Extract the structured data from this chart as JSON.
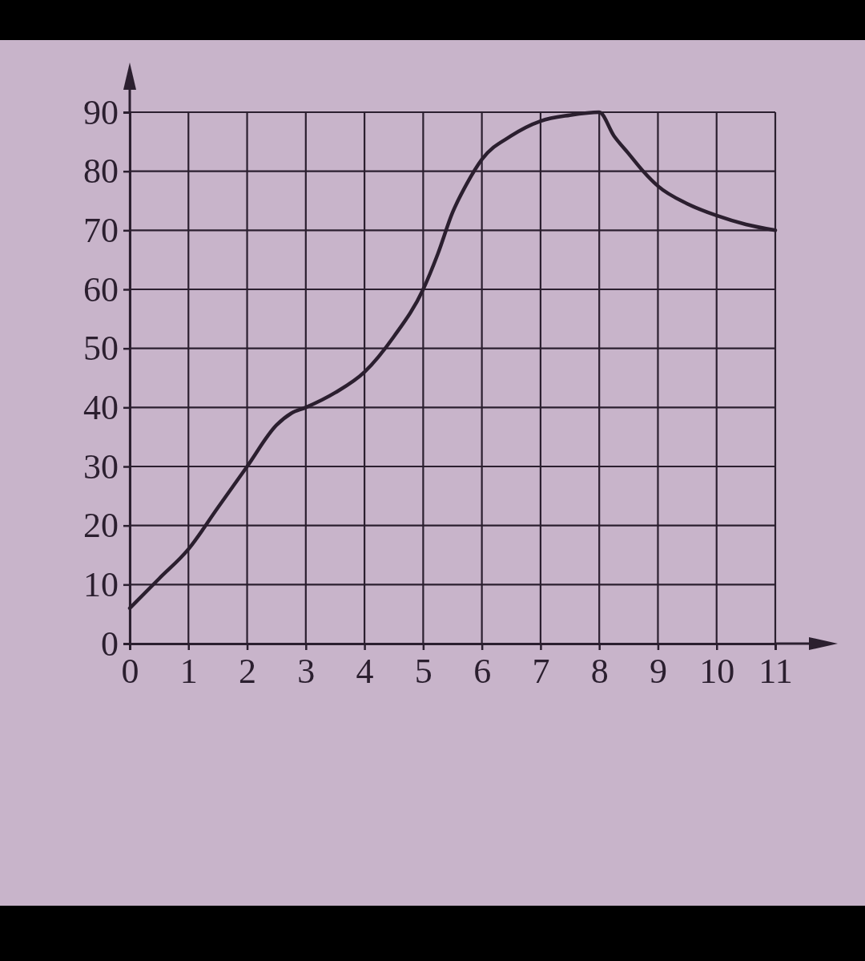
{
  "chart_data": {
    "type": "line",
    "x": [
      0,
      0.5,
      1,
      1.5,
      2,
      2.5,
      2.75,
      3,
      3.5,
      4,
      4.5,
      5,
      5.25,
      5.5,
      5.75,
      6,
      6.5,
      7,
      7.5,
      8,
      8.25,
      8.5,
      8.75,
      9,
      9.5,
      10,
      10.5,
      11
    ],
    "values": [
      6,
      11,
      16,
      23,
      30,
      37,
      39,
      40,
      42.5,
      46,
      52,
      60,
      66,
      73,
      78,
      82,
      86,
      88.5,
      89.5,
      90,
      86,
      83,
      80,
      77.5,
      74.5,
      72.5,
      71,
      70
    ],
    "color": "#2b1f2f",
    "marker": "none",
    "line_style": "solid",
    "xlim": [
      0,
      11
    ],
    "ylim": [
      0,
      90
    ],
    "xticks": [
      0,
      1,
      2,
      3,
      4,
      5,
      6,
      7,
      8,
      9,
      10,
      11
    ],
    "yticks": [
      0,
      10,
      20,
      30,
      40,
      50,
      60,
      70,
      80,
      90
    ],
    "grid": true
  }
}
